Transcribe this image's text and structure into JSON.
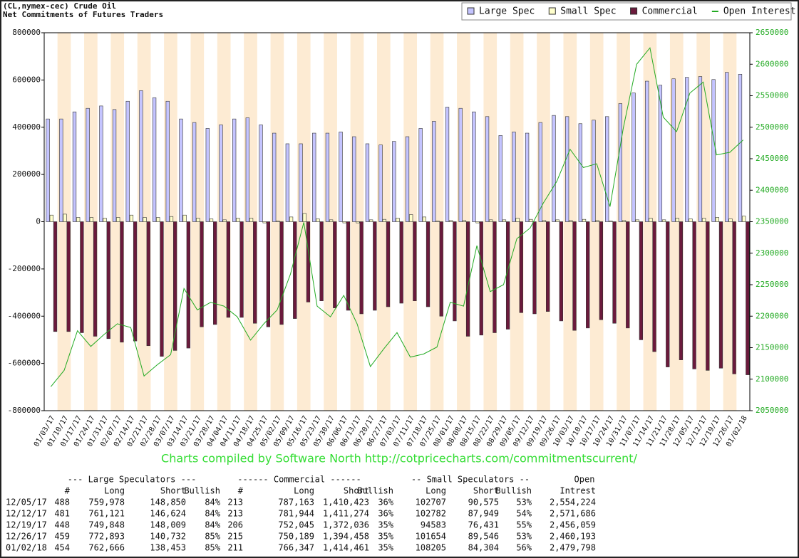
{
  "chart_data": {
    "type": "bar",
    "title": "(CL,nymex-cec) Crude Oil",
    "subtitle": "Net Commitments of Futures Traders",
    "annotation": "Charts compiled by Software North  http://cotpricecharts.com/commitmentscurrent/",
    "categories": [
      "01/03/17",
      "01/10/17",
      "01/17/17",
      "01/24/17",
      "01/31/17",
      "02/07/17",
      "02/14/17",
      "02/21/17",
      "02/28/17",
      "03/07/17",
      "03/14/17",
      "03/21/17",
      "03/28/17",
      "04/04/17",
      "04/11/17",
      "04/18/17",
      "04/25/17",
      "05/02/17",
      "05/09/17",
      "05/16/17",
      "05/23/17",
      "05/30/17",
      "06/06/17",
      "06/13/17",
      "06/20/17",
      "06/27/17",
      "07/03/17",
      "07/11/17",
      "07/18/17",
      "07/25/17",
      "08/01/17",
      "08/08/17",
      "08/15/17",
      "08/22/17",
      "08/29/17",
      "09/05/17",
      "09/12/17",
      "09/19/17",
      "09/26/17",
      "10/03/17",
      "10/10/17",
      "10/17/17",
      "10/24/17",
      "10/31/17",
      "11/07/17",
      "11/14/17",
      "11/21/17",
      "11/28/17",
      "12/05/17",
      "12/12/17",
      "12/19/17",
      "12/26/17",
      "01/02/18"
    ],
    "series": [
      {
        "name": "Large Spec",
        "color": "#c4c4ff",
        "values": [
          435000,
          435000,
          465000,
          480000,
          490000,
          475000,
          510000,
          555000,
          525000,
          510000,
          435000,
          420000,
          395000,
          410000,
          435000,
          440000,
          410000,
          375000,
          330000,
          330000,
          375000,
          375000,
          380000,
          360000,
          330000,
          325000,
          340000,
          360000,
          395000,
          425000,
          485000,
          480000,
          465000,
          445000,
          365000,
          380000,
          375000,
          420000,
          450000,
          445000,
          415000,
          430000,
          445000,
          500000,
          545000,
          595000,
          578000,
          605000,
          611128,
          614497,
          601839,
          632161,
          624213
        ]
      },
      {
        "name": "Small Spec",
        "color": "#ffffcc",
        "values": [
          28000,
          32000,
          18000,
          18000,
          15000,
          18000,
          28000,
          18000,
          18000,
          22000,
          28000,
          15000,
          12000,
          8000,
          15000,
          15000,
          -5000,
          3000,
          20000,
          35000,
          12000,
          8000,
          -5000,
          -5000,
          8000,
          10000,
          15000,
          30000,
          20000,
          3000,
          5000,
          5000,
          -5000,
          8000,
          8000,
          15000,
          10000,
          5000,
          8000,
          5000,
          10000,
          5000,
          3000,
          5000,
          8000,
          15000,
          8000,
          15000,
          12132,
          14833,
          18152,
          12108,
          23901
        ]
      },
      {
        "name": "Commercial",
        "color": "#6b1a3c",
        "values": [
          -465000,
          -465000,
          -470000,
          -485000,
          -495000,
          -510000,
          -505000,
          -525000,
          -570000,
          -545000,
          -535000,
          -445000,
          -435000,
          -405000,
          -405000,
          -430000,
          -445000,
          -435000,
          -410000,
          -340000,
          -335000,
          -365000,
          -375000,
          -390000,
          -375000,
          -360000,
          -345000,
          -335000,
          -360000,
          -400000,
          -420000,
          -485000,
          -480000,
          -470000,
          -455000,
          -385000,
          -390000,
          -380000,
          -420000,
          -460000,
          -450000,
          -415000,
          -430000,
          -450000,
          -500000,
          -550000,
          -615000,
          -585000,
          -623260,
          -629330,
          -619991,
          -644269,
          -648114
        ]
      },
      {
        "name": "Open Interest",
        "color": "#22aa22",
        "type": "line",
        "axis": "y2",
        "values": [
          2088000,
          2114000,
          2177000,
          2152000,
          2171000,
          2188000,
          2182000,
          2105000,
          2123000,
          2139000,
          2244000,
          2210000,
          2222000,
          2216000,
          2199000,
          2162000,
          2188000,
          2210000,
          2267000,
          2349000,
          2216000,
          2199000,
          2233000,
          2188000,
          2120000,
          2148000,
          2174000,
          2135000,
          2140000,
          2151000,
          2222000,
          2216000,
          2312000,
          2239000,
          2250000,
          2323000,
          2340000,
          2380000,
          2414000,
          2465000,
          2436000,
          2442000,
          2374000,
          2499000,
          2600000,
          2626000,
          2516000,
          2493000,
          2554224,
          2571686,
          2456059,
          2460193,
          2479798
        ]
      }
    ],
    "ylim": [
      -800000,
      800000
    ],
    "yticks": [
      -800000,
      -600000,
      -400000,
      -200000,
      0,
      200000,
      400000,
      600000,
      800000
    ],
    "y2lim": [
      2050000,
      2650000
    ],
    "y2ticks": [
      2050000,
      2100000,
      2150000,
      2200000,
      2250000,
      2300000,
      2350000,
      2400000,
      2450000,
      2500000,
      2550000,
      2600000,
      2650000
    ],
    "band_color": "#fdebd3",
    "legend": "top-right"
  },
  "table": {
    "group_headers": [
      "--- Large Speculators ---",
      "------ Commercial ------",
      "-- Small Speculators --",
      "Open"
    ],
    "columns": [
      "#",
      "Long",
      "Short",
      "Bullish",
      "#",
      "Long",
      "Short",
      "Bullish",
      "Long",
      "Short",
      "Bullish",
      "Intrest"
    ],
    "rows": [
      [
        "12/05/17",
        "488",
        "759,978",
        "148,850",
        "84%",
        "213",
        "787,163",
        "1,410,423",
        "36%",
        "102707",
        "90,575",
        "53%",
        "2,554,224"
      ],
      [
        "12/12/17",
        "481",
        "761,121",
        "146,624",
        "84%",
        "213",
        "781,944",
        "1,411,274",
        "36%",
        "102782",
        "87,949",
        "54%",
        "2,571,686"
      ],
      [
        "12/19/17",
        "448",
        "749,848",
        "148,009",
        "84%",
        "206",
        "752,045",
        "1,372,036",
        "35%",
        "94583",
        "76,431",
        "55%",
        "2,456,059"
      ],
      [
        "12/26/17",
        "459",
        "772,893",
        "140,732",
        "85%",
        "215",
        "750,189",
        "1,394,458",
        "35%",
        "101654",
        "89,546",
        "53%",
        "2,460,193"
      ],
      [
        "01/02/18",
        "454",
        "762,666",
        "138,453",
        "85%",
        "211",
        "766,347",
        "1,414,461",
        "35%",
        "108205",
        "84,304",
        "56%",
        "2,479,798"
      ]
    ]
  }
}
